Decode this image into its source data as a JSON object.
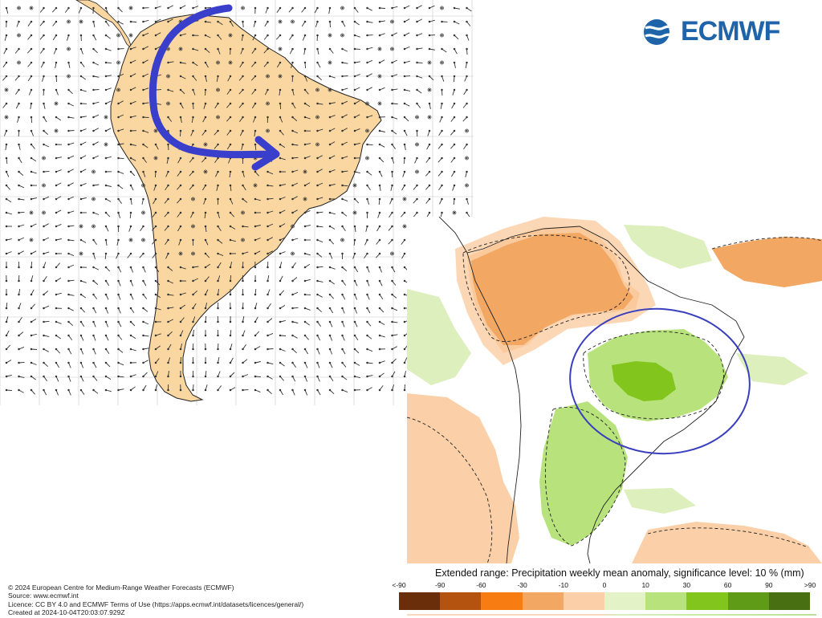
{
  "logo": {
    "text": "ECMWF"
  },
  "credits": {
    "line1": "© 2024 European Centre for Medium-Range Weather Forecasts (ECMWF)",
    "line2": "Source: www.ecmwf.int",
    "line3": "Licence: CC BY 4.0 and ECMWF Terms of Use (https://apps.ecmwf.int/datasets/licences/general/)",
    "line4": "Created at 2024-10-04T20:03:07.929Z"
  },
  "legend": {
    "title": "Extended range: Precipitation weekly mean anomaly, significance level: 10 % (mm)",
    "ticks": [
      "<-90",
      "-90",
      "-60",
      "-30",
      "-10",
      "0",
      "10",
      "30",
      "60",
      "90",
      ">90"
    ],
    "colors": [
      "#6b2e0a",
      "#b4520f",
      "#f77c11",
      "#f2a762",
      "#fbd0a8",
      "#e3f2c7",
      "#b7e27c",
      "#82c51c",
      "#5f9b16",
      "#486f11"
    ]
  },
  "colors": {
    "land_left": "#fad7a0",
    "arrow": "#3a3fcb",
    "ellipse": "#3a3fbd",
    "dry": "#f2a762",
    "dry_light": "#fbd0a8",
    "wet_light": "#dcefbd",
    "wet": "#b7e27c",
    "wet_strong": "#82c51c",
    "brand": "#1f64a8"
  }
}
